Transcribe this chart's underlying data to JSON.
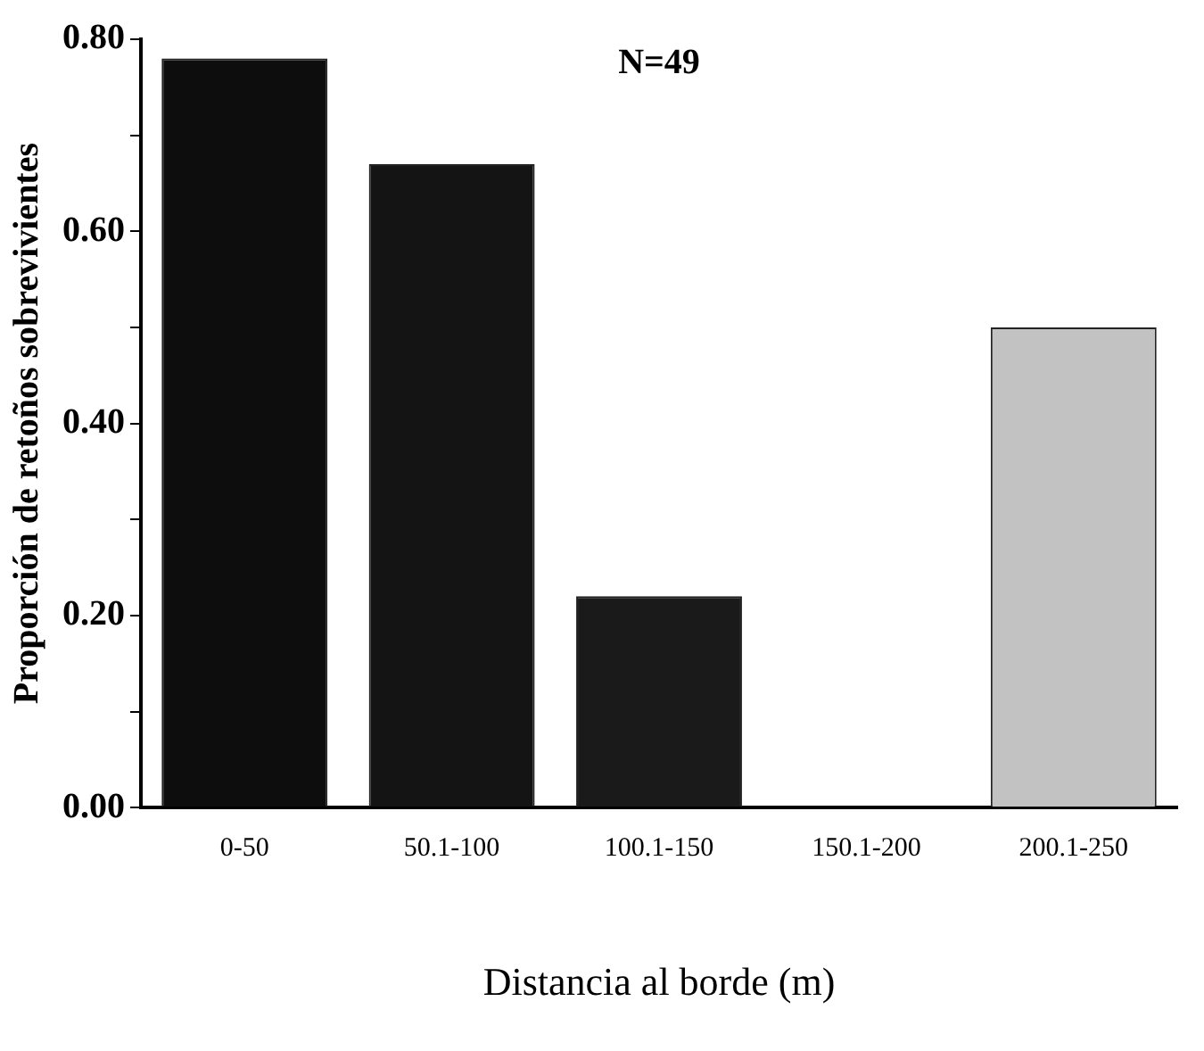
{
  "chart_data": {
    "type": "bar",
    "xlabel": "Distancia al borde (m)",
    "ylabel": "Proporción de retoños sobrevivientes",
    "annotations": [
      "N=49"
    ],
    "categories": [
      "0-50",
      "50.1-100",
      "100.1-150",
      "150.1-200",
      "200.1-250"
    ],
    "values": [
      0.78,
      0.67,
      0.22,
      0,
      0.5
    ],
    "colors": [
      "#0d0d0d",
      "#141414",
      "#1a1a1a",
      "#1a1a1a",
      "#c2c2c2"
    ],
    "ylim": [
      0,
      0.8
    ],
    "yticks": [
      {
        "value": 0,
        "label": "0.00"
      },
      {
        "value": 0.1,
        "label": null
      },
      {
        "value": 0.2,
        "label": "0.20"
      },
      {
        "value": 0.3,
        "label": null
      },
      {
        "value": 0.4,
        "label": "0.40"
      },
      {
        "value": 0.5,
        "label": null
      },
      {
        "value": 0.6,
        "label": "0.60"
      },
      {
        "value": 0.7,
        "label": null
      },
      {
        "value": 0.8,
        "label": "0.80"
      }
    ],
    "grid": false,
    "legend": false
  }
}
